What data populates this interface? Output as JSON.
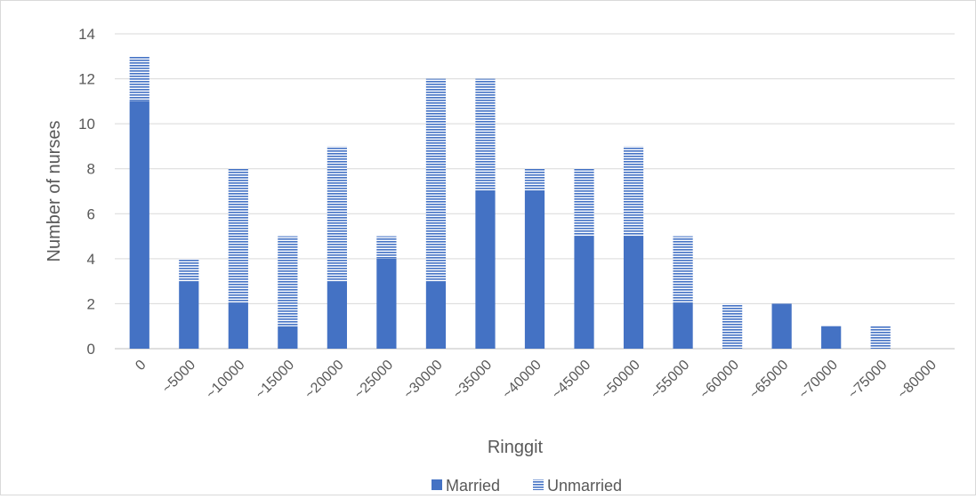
{
  "chart_data": {
    "type": "bar",
    "stacked": true,
    "categories": [
      "0",
      "~5000",
      "~10000",
      "~15000",
      "~20000",
      "~25000",
      "~30000",
      "~35000",
      "~40000",
      "~45000",
      "~50000",
      "~55000",
      "~60000",
      "~65000",
      "~70000",
      "~75000",
      "~80000"
    ],
    "series": [
      {
        "name": "Married",
        "color": "#4472c4",
        "pattern": "solid",
        "values": [
          11,
          3,
          2,
          1,
          3,
          4,
          3,
          7,
          7,
          5,
          5,
          2,
          0,
          2,
          1,
          0,
          0
        ]
      },
      {
        "name": "Unmarried",
        "color": "#4472c4",
        "pattern": "horizontal-stripes",
        "values": [
          2,
          1,
          6,
          4,
          6,
          1,
          9,
          5,
          1,
          3,
          4,
          3,
          2,
          0,
          0,
          1,
          0
        ]
      }
    ],
    "xlabel": "Ringgit",
    "ylabel": "Number of nurses",
    "ylim": [
      0,
      14
    ],
    "yticks": [
      0,
      2,
      4,
      6,
      8,
      10,
      12,
      14
    ],
    "grid": true,
    "legend_position": "bottom"
  }
}
